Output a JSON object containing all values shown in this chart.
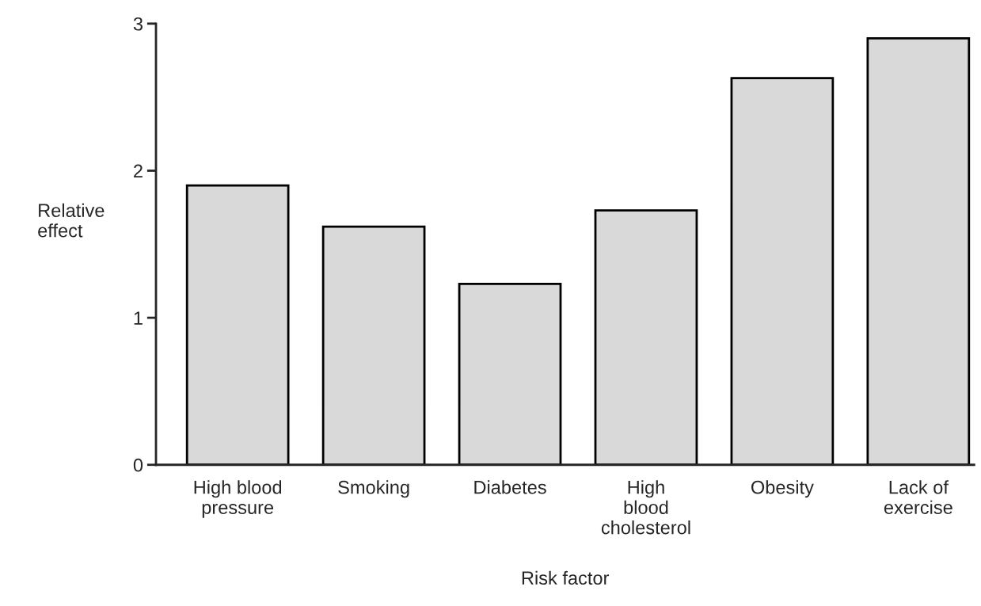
{
  "chart_data": {
    "type": "bar",
    "xlabel": "Risk factor",
    "ylabel": "Relative\neffect",
    "categories": [
      "High blood\npressure",
      "Smoking",
      "Diabetes",
      "High\nblood\ncholesterol",
      "Obesity",
      "Lack of\nexercise"
    ],
    "values": [
      1.9,
      1.62,
      1.23,
      1.73,
      2.63,
      2.9
    ],
    "color": "#d9d9d9",
    "ylim": [
      0,
      3
    ],
    "yticks": [
      0,
      1,
      2,
      3
    ],
    "grid": false,
    "legend": false
  }
}
